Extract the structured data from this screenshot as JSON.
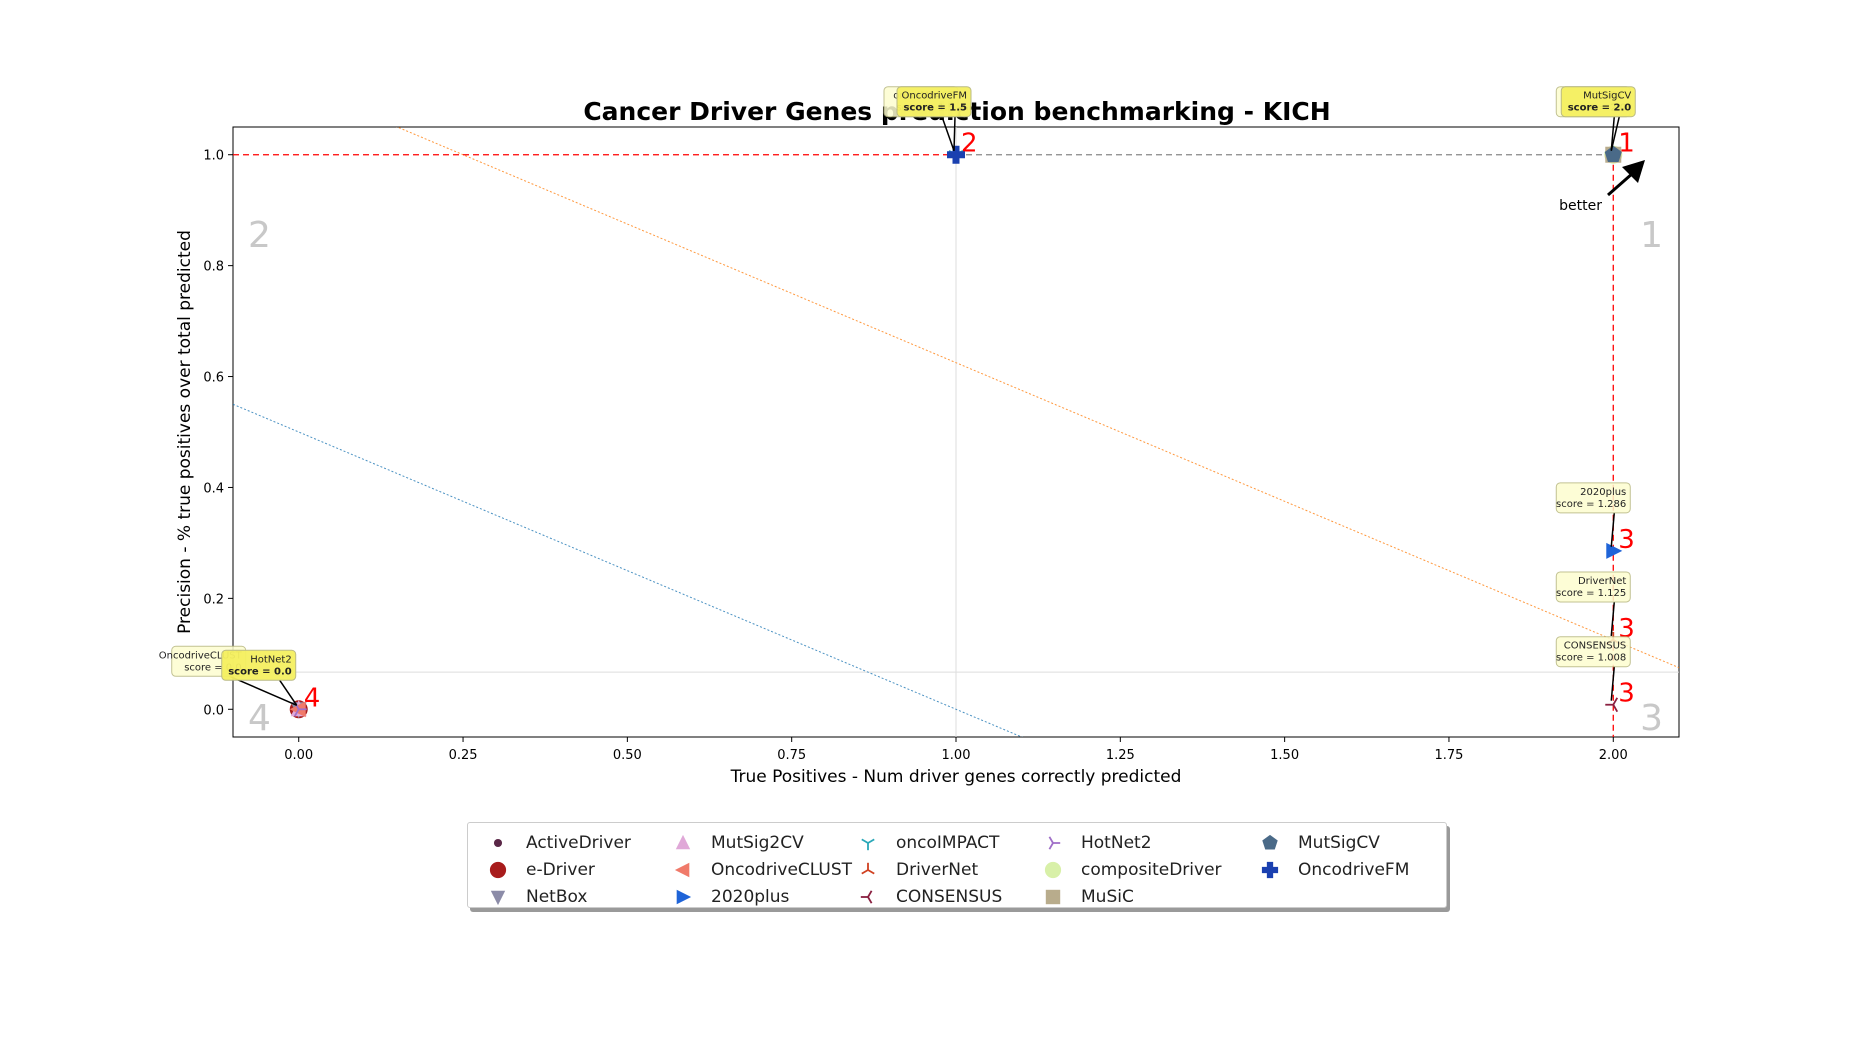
{
  "chart_data": {
    "type": "scatter",
    "title": "Cancer Driver Genes prediction benchmarking - KICH",
    "xlabel": "True Positives - Num driver genes correctly predicted",
    "ylabel": "Precision - % true positives over total predicted",
    "xlim": [
      -0.1,
      2.1
    ],
    "ylim": [
      -0.05,
      1.05
    ],
    "xticks": [
      "0.00",
      "0.25",
      "0.50",
      "0.75",
      "1.00",
      "1.25",
      "1.50",
      "1.75",
      "2.00"
    ],
    "yticks": [
      "0.0",
      "0.2",
      "0.4",
      "0.6",
      "0.8",
      "1.0"
    ],
    "quadrant_labels": [
      "1",
      "2",
      "3",
      "4"
    ],
    "better_label": "better",
    "points": [
      {
        "name": "ActiveDriver",
        "x": 0.0,
        "y": 0.0,
        "color": "#5a2747",
        "marker": "circle-small",
        "rank": "4",
        "score_label": "score = 0.0"
      },
      {
        "name": "e-Driver",
        "x": 0.0,
        "y": 0.0,
        "color": "#a81c1c",
        "marker": "circle",
        "rank": "4",
        "score_label": "score = 0.0"
      },
      {
        "name": "NetBox",
        "x": 0.0,
        "y": 0.0,
        "color": "#8c8ca8",
        "marker": "triangle-down",
        "rank": "4",
        "score_label": "score = 0.0"
      },
      {
        "name": "MutSig2CV",
        "x": 0.0,
        "y": 0.0,
        "color": "#e0a8d8",
        "marker": "triangle-up",
        "rank": "4",
        "score_label": "score = 0.0"
      },
      {
        "name": "OncodriveCLUST",
        "x": 0.0,
        "y": 0.0,
        "color": "#f07a6a",
        "marker": "triangle-left",
        "rank": "4",
        "score_label": "score = 0.0"
      },
      {
        "name": "2020plus",
        "x": 2.0,
        "y": 0.2857,
        "color": "#1f64d8",
        "marker": "triangle-right",
        "rank": "3",
        "score_label": "score = 1.286"
      },
      {
        "name": "oncoIMPACT",
        "x": 1.0,
        "y": 1.0,
        "color": "#2aa8b8",
        "marker": "tri-down",
        "rank": "2",
        "score_label": "score = 1.5"
      },
      {
        "name": "DriverNet",
        "x": 2.0,
        "y": 0.125,
        "color": "#d04020",
        "marker": "tri-up",
        "rank": "3",
        "score_label": "score = 1.125"
      },
      {
        "name": "CONSENSUS",
        "x": 2.0,
        "y": 0.0082,
        "color": "#8a2040",
        "marker": "tri-left",
        "rank": "3",
        "score_label": "score = 1.008"
      },
      {
        "name": "HotNet2",
        "x": 0.0,
        "y": 0.0,
        "color": "#a070c8",
        "marker": "tri-right",
        "rank": "4",
        "score_label": "score = 0.0"
      },
      {
        "name": "compositeDriver",
        "x": 2.0,
        "y": 1.0,
        "color": "#d8f0a8",
        "marker": "circle-large",
        "rank": "1",
        "score_label": "score = 2.0"
      },
      {
        "name": "MuSiC",
        "x": 2.0,
        "y": 1.0,
        "color": "#b8ac8c",
        "marker": "square",
        "rank": "1",
        "score_label": "score = 2.0"
      },
      {
        "name": "MutSigCV",
        "x": 2.0,
        "y": 1.0,
        "color": "#4a6a88",
        "marker": "pentagon",
        "rank": "1",
        "score_label": "score = 2.0"
      },
      {
        "name": "OncodriveFM",
        "x": 1.0,
        "y": 1.0,
        "color": "#1a40b0",
        "marker": "plus",
        "rank": "2",
        "score_label": "score = 1.5"
      }
    ],
    "annotations": [
      {
        "text": "OncodriveCLUST",
        "score": "score = 0.0",
        "x": 0.0,
        "y": 0.0,
        "highlight": false
      },
      {
        "text": "HotNet2",
        "score": "score = 0.0",
        "x": 0.0,
        "y": 0.0,
        "highlight": true
      },
      {
        "text": "oncoIMPACT",
        "score": "score = 1.5",
        "x": 1.0,
        "y": 1.0,
        "highlight": false
      },
      {
        "text": "OncodriveFM",
        "score": "score = 1.5",
        "x": 1.0,
        "y": 1.0,
        "highlight": true
      },
      {
        "text": "MuSiC",
        "score": "score = 2.0",
        "x": 2.0,
        "y": 1.0,
        "highlight": false
      },
      {
        "text": "MutSigCV",
        "score": "score = 2.0",
        "x": 2.0,
        "y": 1.0,
        "highlight": true
      },
      {
        "text": "2020plus",
        "score": "score = 1.286",
        "x": 2.0,
        "y": 0.2857,
        "highlight": false
      },
      {
        "text": "DriverNet",
        "score": "score = 1.125",
        "x": 2.0,
        "y": 0.125,
        "highlight": false
      },
      {
        "text": "CONSENSUS",
        "score": "score = 1.008",
        "x": 2.0,
        "y": 0.0082,
        "highlight": false
      }
    ],
    "reference_lines": {
      "pareto_color": "#ff0000",
      "pareto_style": "dashed",
      "median_x": 1.0,
      "median_y": 0.067,
      "iso_score_lines": [
        {
          "score": 0.5,
          "color": "#1f77b4"
        },
        {
          "score": 1.125,
          "color": "#ff7f0e"
        },
        {
          "score": 2.75,
          "color": "#2ca02c"
        }
      ]
    },
    "legend_placement": "bottom-center",
    "grid": false
  }
}
